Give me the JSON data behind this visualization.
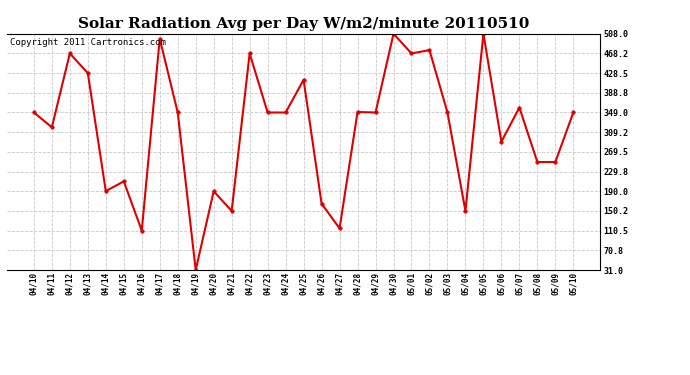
{
  "title": "Solar Radiation Avg per Day W/m2/minute 20110510",
  "copyright": "Copyright 2011 Cartronics.com",
  "dates": [
    "04/10",
    "04/11",
    "04/12",
    "04/13",
    "04/14",
    "04/15",
    "04/16",
    "04/17",
    "04/18",
    "04/19",
    "04/20",
    "04/21",
    "04/22",
    "04/23",
    "04/24",
    "04/25",
    "04/26",
    "04/27",
    "04/28",
    "04/29",
    "04/30",
    "05/01",
    "05/02",
    "05/03",
    "05/04",
    "05/05",
    "05/06",
    "05/07",
    "05/08",
    "05/09",
    "05/10"
  ],
  "values": [
    349.0,
    319.2,
    468.2,
    428.5,
    190.2,
    210.0,
    110.5,
    498.0,
    349.0,
    31.0,
    190.0,
    150.2,
    468.2,
    349.0,
    349.0,
    415.0,
    165.0,
    115.0,
    350.0,
    349.0,
    508.0,
    468.2,
    475.0,
    349.0,
    150.2,
    508.0,
    290.0,
    359.0,
    249.0,
    249.0,
    349.0
  ],
  "line_color": "#dd0000",
  "marker_color": "#dd0000",
  "background_color": "#ffffff",
  "grid_color": "#c8c8c8",
  "yticks": [
    31.0,
    70.8,
    110.5,
    150.2,
    190.0,
    229.8,
    269.5,
    309.2,
    349.0,
    388.8,
    428.5,
    468.2,
    508.0
  ],
  "ylim": [
    31.0,
    508.0
  ],
  "title_fontsize": 11,
  "copyright_fontsize": 6.5
}
